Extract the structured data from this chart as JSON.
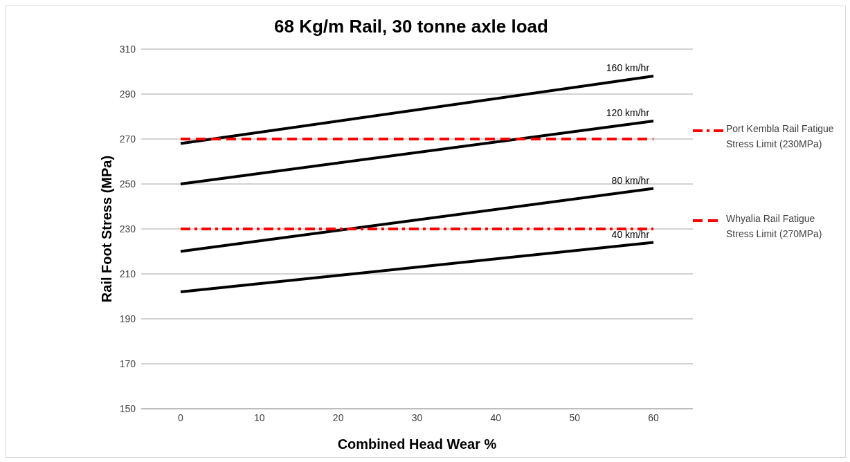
{
  "chart_data": {
    "type": "line",
    "title": "68 Kg/m Rail, 30 tonne axle load",
    "xlabel": "Combined Head Wear %",
    "ylabel": "Rail Foot Stress (MPa)",
    "x": [
      0,
      60
    ],
    "xlim": [
      -5,
      65
    ],
    "xticks": [
      0,
      10,
      20,
      30,
      40,
      50,
      60
    ],
    "ylim": [
      150,
      310
    ],
    "yticks": [
      150,
      170,
      190,
      210,
      230,
      250,
      270,
      290,
      310
    ],
    "grid": "y",
    "legend": "right",
    "marker": "none",
    "series": [
      {
        "name": "160 km/hr",
        "color": "#000000",
        "values": [
          268,
          298
        ]
      },
      {
        "name": "120 km/hr",
        "color": "#000000",
        "values": [
          250,
          278
        ]
      },
      {
        "name": "80 km/hr",
        "color": "#000000",
        "values": [
          220,
          248
        ]
      },
      {
        "name": "40 km/hr",
        "color": "#000000",
        "values": [
          202,
          224
        ]
      },
      {
        "name": "Port Kembla Rail Fatigue Stress Limit (230MPa)",
        "color": "#ff0000",
        "values": [
          230,
          230
        ],
        "line_style": "dashdot"
      },
      {
        "name": "Whyalia Rail Fatigue Stress Limit (270MPa)",
        "color": "#ff0000",
        "values": [
          270,
          270
        ],
        "line_style": "dashed"
      }
    ]
  }
}
